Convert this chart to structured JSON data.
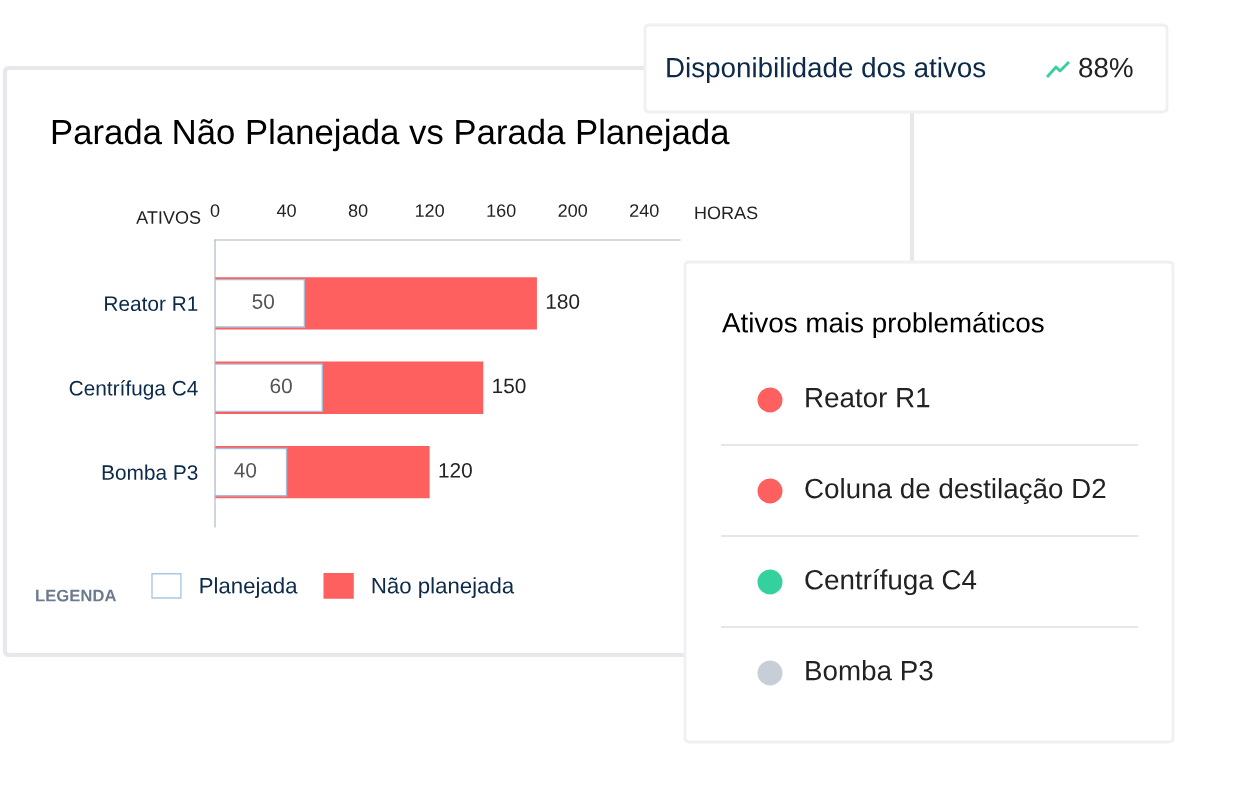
{
  "chart_data": [
    {
      "type": "bar",
      "orientation": "horizontal",
      "title": "Parada Não Planejada vs Parada Planejada",
      "ylabel": "ATIVOS",
      "xlabel": "HORAS",
      "legend_title": "LEGENDA",
      "legend": "bottom left",
      "grid": false,
      "data_labels": true,
      "categories": [
        "Reator R1",
        "Centrífuga C4",
        "Bomba P3"
      ],
      "xlim": [
        0,
        260
      ],
      "xticks": [
        0,
        40,
        80,
        120,
        160,
        200,
        240
      ],
      "series": [
        {
          "name": "Não planejada",
          "color": "#fe5f5f",
          "values": [
            180,
            150,
            120
          ]
        },
        {
          "name": "Planejada",
          "color": "#ffffff",
          "values": [
            50,
            60,
            40
          ]
        }
      ]
    },
    {
      "type": "other",
      "title": "Disponibilidade dos ativos",
      "annotations": [
        "88%"
      ]
    },
    {
      "type": "other",
      "title": "Ativos mais problemáticos",
      "categories": [
        "Reator R1",
        "Coluna de destilação D2",
        "Centrífuga C4",
        "Bomba P3"
      ],
      "colors": [
        "#fe5f5f",
        "#fe5f5f",
        "#34d19f",
        "#c7ced8"
      ]
    }
  ]
}
